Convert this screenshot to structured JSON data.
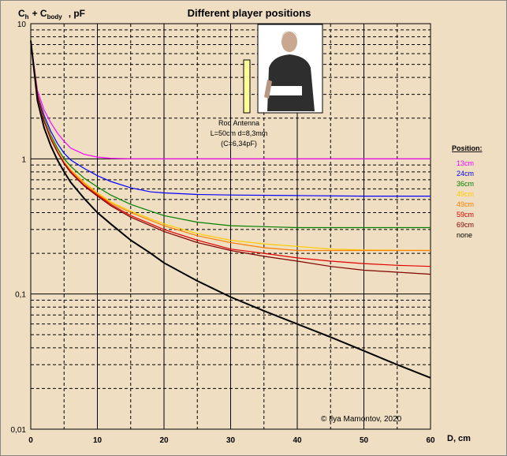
{
  "chart_data": {
    "type": "line",
    "title": "Different  player positions",
    "ylabel": {
      "main": "C",
      "sub_h": "h",
      "plus": "+ C",
      "sub_body": "body",
      "unit": ", pF"
    },
    "xlabel": "D, cm",
    "xlim": [
      0,
      60
    ],
    "ylim": [
      0.01,
      10
    ],
    "y_scale": "log",
    "grid": true,
    "x_ticks": [
      "0",
      "10",
      "20",
      "30",
      "40",
      "50",
      "60"
    ],
    "y_ticks": [
      {
        "v": 10,
        "label": "10"
      },
      {
        "v": 1,
        "label": "1"
      },
      {
        "v": 0.1,
        "label": "0,1"
      },
      {
        "v": 0.01,
        "label": "0,01"
      }
    ],
    "legend_title": "Position:",
    "legend_placement": "right",
    "annotations": {
      "antenna_name": "Rod Antenna",
      "antenna_dims": "L=50cm d=8,3mm",
      "antenna_cap": "(C=6,34pF)",
      "copyright": "© Ilya Mamontov, 2020"
    },
    "series": [
      {
        "name": "13cm",
        "color": "#ff00ff",
        "x": [
          0,
          1,
          2,
          3,
          4,
          5,
          6,
          8,
          10,
          12,
          15,
          20,
          30,
          40,
          50,
          60
        ],
        "y": [
          7.5,
          3.2,
          2.3,
          1.85,
          1.55,
          1.35,
          1.2,
          1.08,
          1.03,
          1.01,
          1.0,
          1.0,
          1.0,
          1.0,
          1.0,
          1.0
        ]
      },
      {
        "name": "24cm",
        "color": "#0000ff",
        "x": [
          0,
          1,
          2,
          3,
          4,
          5,
          6,
          8,
          10,
          12,
          15,
          18,
          20,
          25,
          30,
          40,
          50,
          60
        ],
        "y": [
          7.5,
          3.0,
          2.1,
          1.6,
          1.3,
          1.1,
          0.98,
          0.85,
          0.75,
          0.68,
          0.61,
          0.57,
          0.56,
          0.545,
          0.54,
          0.535,
          0.53,
          0.53
        ]
      },
      {
        "name": "36cm",
        "color": "#008000",
        "x": [
          0,
          1,
          2,
          3,
          4,
          5,
          6,
          8,
          10,
          12,
          15,
          18,
          20,
          25,
          30,
          35,
          40,
          50,
          60
        ],
        "y": [
          7.5,
          3.0,
          2.0,
          1.5,
          1.2,
          1.0,
          0.88,
          0.72,
          0.62,
          0.54,
          0.46,
          0.41,
          0.38,
          0.34,
          0.32,
          0.315,
          0.31,
          0.31,
          0.31
        ]
      },
      {
        "name": "49cm",
        "color": "#ffcc00",
        "x": [
          0,
          1,
          2,
          3,
          4,
          5,
          6,
          8,
          10,
          12,
          15,
          18,
          20,
          25,
          30,
          35,
          40,
          45,
          50,
          60
        ],
        "y": [
          7.5,
          3.0,
          1.95,
          1.45,
          1.15,
          0.95,
          0.83,
          0.67,
          0.56,
          0.48,
          0.41,
          0.36,
          0.33,
          0.28,
          0.25,
          0.235,
          0.225,
          0.215,
          0.212,
          0.21
        ]
      },
      {
        "name": "49cm",
        "color": "#ff8000",
        "x": [
          0,
          1,
          2,
          3,
          4,
          5,
          6,
          8,
          10,
          12,
          15,
          18,
          20,
          25,
          30,
          35,
          40,
          45,
          50,
          60
        ],
        "y": [
          7.5,
          3.0,
          1.95,
          1.45,
          1.15,
          0.95,
          0.82,
          0.66,
          0.55,
          0.47,
          0.4,
          0.35,
          0.32,
          0.27,
          0.24,
          0.22,
          0.21,
          0.21,
          0.21,
          0.21
        ]
      },
      {
        "name": "59cm",
        "color": "#e00000",
        "x": [
          0,
          1,
          2,
          3,
          4,
          5,
          6,
          8,
          10,
          12,
          15,
          18,
          20,
          25,
          30,
          35,
          40,
          45,
          50,
          55,
          60
        ],
        "y": [
          7.5,
          3.0,
          1.9,
          1.4,
          1.12,
          0.93,
          0.8,
          0.64,
          0.54,
          0.46,
          0.38,
          0.33,
          0.3,
          0.25,
          0.215,
          0.2,
          0.185,
          0.175,
          0.168,
          0.163,
          0.16
        ]
      },
      {
        "name": "69cm",
        "color": "#800000",
        "x": [
          0,
          1,
          2,
          3,
          4,
          5,
          6,
          8,
          10,
          12,
          15,
          18,
          20,
          25,
          30,
          35,
          40,
          45,
          50,
          55,
          60
        ],
        "y": [
          7.5,
          3.0,
          1.9,
          1.4,
          1.12,
          0.92,
          0.79,
          0.63,
          0.53,
          0.45,
          0.37,
          0.32,
          0.29,
          0.24,
          0.21,
          0.19,
          0.175,
          0.16,
          0.15,
          0.145,
          0.14
        ]
      },
      {
        "name": "none",
        "color": "#000000",
        "x": [
          0,
          1,
          2,
          3,
          4,
          5,
          6,
          8,
          10,
          12,
          15,
          18,
          20,
          25,
          30,
          35,
          40,
          45,
          50,
          55,
          60
        ],
        "y": [
          7.5,
          2.7,
          1.7,
          1.25,
          0.98,
          0.8,
          0.67,
          0.51,
          0.4,
          0.33,
          0.25,
          0.2,
          0.17,
          0.125,
          0.095,
          0.075,
          0.06,
          0.048,
          0.038,
          0.03,
          0.024
        ]
      }
    ]
  }
}
